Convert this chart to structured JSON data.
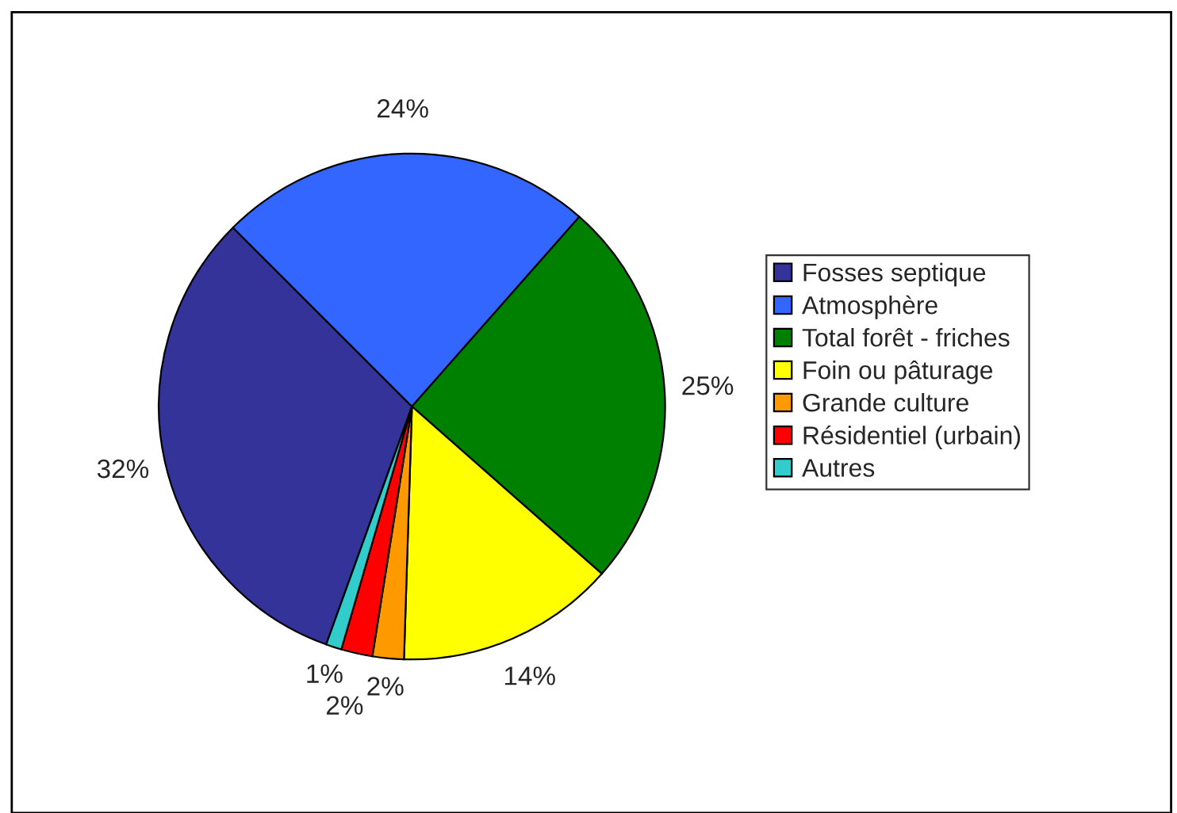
{
  "chart_data": {
    "type": "pie",
    "categories": [
      "Fosses septique",
      "Atmosphère",
      "Total forêt - friches",
      "Foin ou pâturage",
      "Grande culture",
      "Résidentiel (urbain)",
      "Autres"
    ],
    "values": [
      32,
      24,
      25,
      14,
      2,
      2,
      1
    ],
    "value_labels": [
      "32%",
      "24%",
      "25%",
      "14%",
      "2%",
      "2%",
      "1%"
    ],
    "colors": [
      "#333399",
      "#3366ff",
      "#008000",
      "#ffff00",
      "#ff9900",
      "#ff0000",
      "#33cccc"
    ],
    "legend": "right"
  }
}
